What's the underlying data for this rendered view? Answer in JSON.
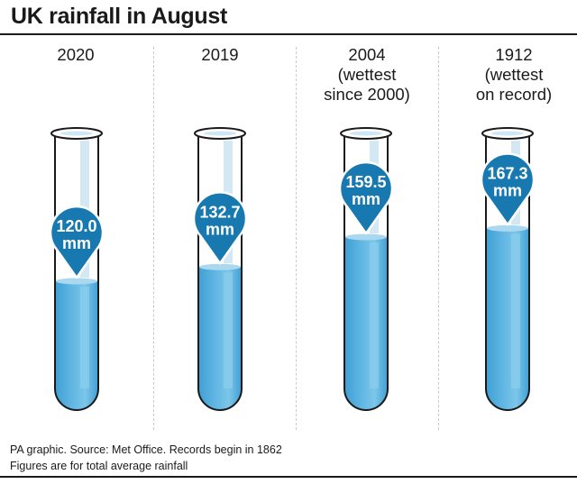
{
  "title": "UK rainfall in August",
  "colors": {
    "water": "#5db4e1",
    "water_dark": "#1b8cc4",
    "pin": "#1779b0",
    "tube_outline": "#1a1a1a",
    "tube_highlight": "#d4e8f3"
  },
  "chart_data": {
    "type": "bar",
    "title": "UK rainfall in August",
    "unit": "mm",
    "categories": [
      "2020",
      "2019",
      "2004 (wettest since 2000)",
      "1912 (wettest on record)"
    ],
    "values": [
      120.0,
      132.7,
      159.5,
      167.3
    ],
    "ylim": [
      0,
      200
    ],
    "columns": [
      {
        "label_lines": [
          "2020"
        ],
        "value": 120.0,
        "value_text": "120.0",
        "unit_text": "mm"
      },
      {
        "label_lines": [
          "2019"
        ],
        "value": 132.7,
        "value_text": "132.7",
        "unit_text": "mm"
      },
      {
        "label_lines": [
          "2004",
          "(wettest",
          "since 2000)"
        ],
        "value": 159.5,
        "value_text": "159.5",
        "unit_text": "mm"
      },
      {
        "label_lines": [
          "1912",
          "(wettest",
          "on record)"
        ],
        "value": 167.3,
        "value_text": "167.3",
        "unit_text": "mm"
      }
    ]
  },
  "footer": {
    "line1": "PA graphic. Source: Met Office. Records begin in 1862",
    "line2": "Figures are for total average rainfall"
  }
}
